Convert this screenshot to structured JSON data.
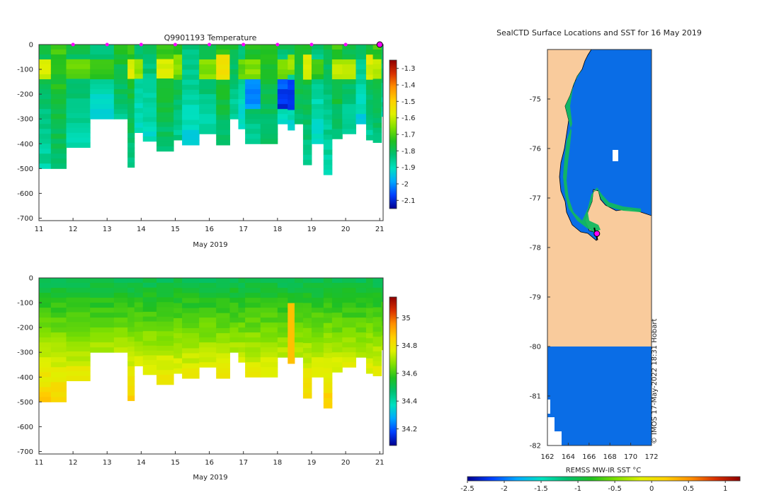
{
  "colors": {
    "land": "#f9cb9c",
    "ocean": "#0a6de6",
    "marker": "#ff00ff",
    "axis": "#333333",
    "temp_colorscale": [
      "#00008f",
      "#0040ff",
      "#00a8ff",
      "#00e0c0",
      "#00c070",
      "#20c020",
      "#80e000",
      "#e0f000",
      "#ffd000",
      "#ff9000",
      "#d83000",
      "#8f0000"
    ],
    "sal_colorscale": [
      "#00008f",
      "#0040ff",
      "#00a8ff",
      "#00e0c0",
      "#00c070",
      "#20c020",
      "#80e000",
      "#e0f000",
      "#ffd000",
      "#ff9000",
      "#d83000",
      "#8f0000"
    ]
  },
  "chart_data": [
    {
      "id": "temperature",
      "type": "heatmap",
      "title": "Q9901193  Temperature",
      "xlabel": "May 2019",
      "ylabel": "",
      "xlim": [
        11,
        21.1
      ],
      "ylim": [
        -710,
        0
      ],
      "xticks": [
        11,
        12,
        13,
        14,
        15,
        16,
        17,
        18,
        19,
        20,
        21
      ],
      "yticks": [
        0,
        -100,
        -200,
        -300,
        -400,
        -500,
        -600,
        -700
      ],
      "profile_times": [
        11.0,
        11.35,
        11.8,
        12.5,
        13.2,
        13.6,
        13.8,
        14.05,
        14.45,
        14.95,
        15.2,
        15.7,
        16.2,
        16.6,
        16.85,
        17.05,
        17.5,
        18.0,
        18.3,
        18.5,
        18.75,
        19.0,
        19.35,
        19.6,
        19.9,
        20.3,
        20.6,
        20.8,
        21.05
      ],
      "profile_max_depth": [
        500,
        500,
        415,
        300,
        300,
        495,
        355,
        390,
        430,
        385,
        405,
        360,
        405,
        300,
        340,
        400,
        400,
        320,
        345,
        320,
        485,
        400,
        525,
        380,
        360,
        320,
        385,
        395,
        290
      ],
      "surface_markers_x": [
        12,
        13,
        14,
        15,
        16,
        17,
        18,
        19,
        20,
        21
      ],
      "colorbar": {
        "min": -2.15,
        "max": -1.25,
        "ticks": [
          -1.3,
          -1.4,
          -1.5,
          -1.6,
          -1.7,
          -1.8,
          -1.9,
          -2,
          -2.1
        ]
      }
    },
    {
      "id": "salinity",
      "type": "heatmap",
      "title": "",
      "xlabel": "May 2019",
      "ylabel": "",
      "xlim": [
        11,
        21.1
      ],
      "ylim": [
        -710,
        0
      ],
      "xticks": [
        11,
        12,
        13,
        14,
        15,
        16,
        17,
        18,
        19,
        20,
        21
      ],
      "yticks": [
        0,
        -100,
        -200,
        -300,
        -400,
        -500,
        -600,
        -700
      ],
      "profile_times": [
        11.0,
        11.35,
        11.8,
        12.5,
        13.2,
        13.6,
        13.8,
        14.05,
        14.45,
        14.95,
        15.2,
        15.7,
        16.2,
        16.6,
        16.85,
        17.05,
        17.5,
        18.0,
        18.3,
        18.5,
        18.75,
        19.0,
        19.35,
        19.6,
        19.9,
        20.3,
        20.6,
        20.8,
        21.05
      ],
      "profile_max_depth": [
        500,
        500,
        415,
        300,
        300,
        495,
        355,
        390,
        430,
        385,
        405,
        360,
        405,
        300,
        340,
        400,
        400,
        320,
        345,
        320,
        485,
        400,
        525,
        380,
        360,
        320,
        385,
        395,
        290
      ],
      "colorbar": {
        "min": 34.08,
        "max": 35.15,
        "ticks": [
          35,
          34.8,
          34.6,
          34.4,
          34.2
        ]
      }
    },
    {
      "id": "sst_map",
      "type": "heatmap",
      "title": "SealCTD Surface Locations and SST for 16 May 2019",
      "xlabel": "",
      "ylabel": "",
      "xlim": [
        162,
        172
      ],
      "ylim": [
        -82,
        -74
      ],
      "xticks": [
        162,
        164,
        166,
        168,
        170,
        172
      ],
      "yticks": [
        -75,
        -76,
        -77,
        -78,
        -79,
        -80,
        -81,
        -82
      ],
      "track_lon": [
        166.5,
        166.6,
        166.7,
        166.75,
        166.8
      ],
      "track_lat": [
        -77.6,
        -77.7,
        -77.75,
        -77.8,
        -77.85
      ],
      "last_position": {
        "lon": 166.75,
        "lat": -77.72
      },
      "colorbar": {
        "label": "REMSS MW-IR SST °C",
        "min": -2.5,
        "max": 1.2,
        "ticks": [
          -2.5,
          -2,
          -1.5,
          -1,
          -0.5,
          0,
          0.5,
          1
        ]
      },
      "credit": "© IMOS 17-May-2022 18:31 Hobart"
    }
  ]
}
